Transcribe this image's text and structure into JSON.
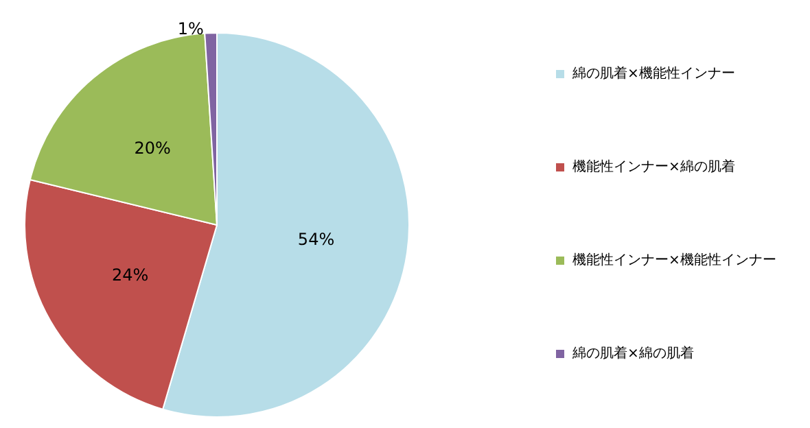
{
  "chart_data": {
    "type": "pie",
    "categories": [
      "綿の肌着×機能性インナー",
      "機能性インナー×綿の肌着",
      "機能性インナー×機能性インナー",
      "綿の肌着×綿の肌着"
    ],
    "values": [
      54,
      24,
      20,
      1
    ],
    "value_labels": [
      "54%",
      "24%",
      "20%",
      "1%"
    ],
    "colors": [
      "#b7dde8",
      "#c0504d",
      "#9bbb59",
      "#8064a2"
    ],
    "legend": "right"
  }
}
